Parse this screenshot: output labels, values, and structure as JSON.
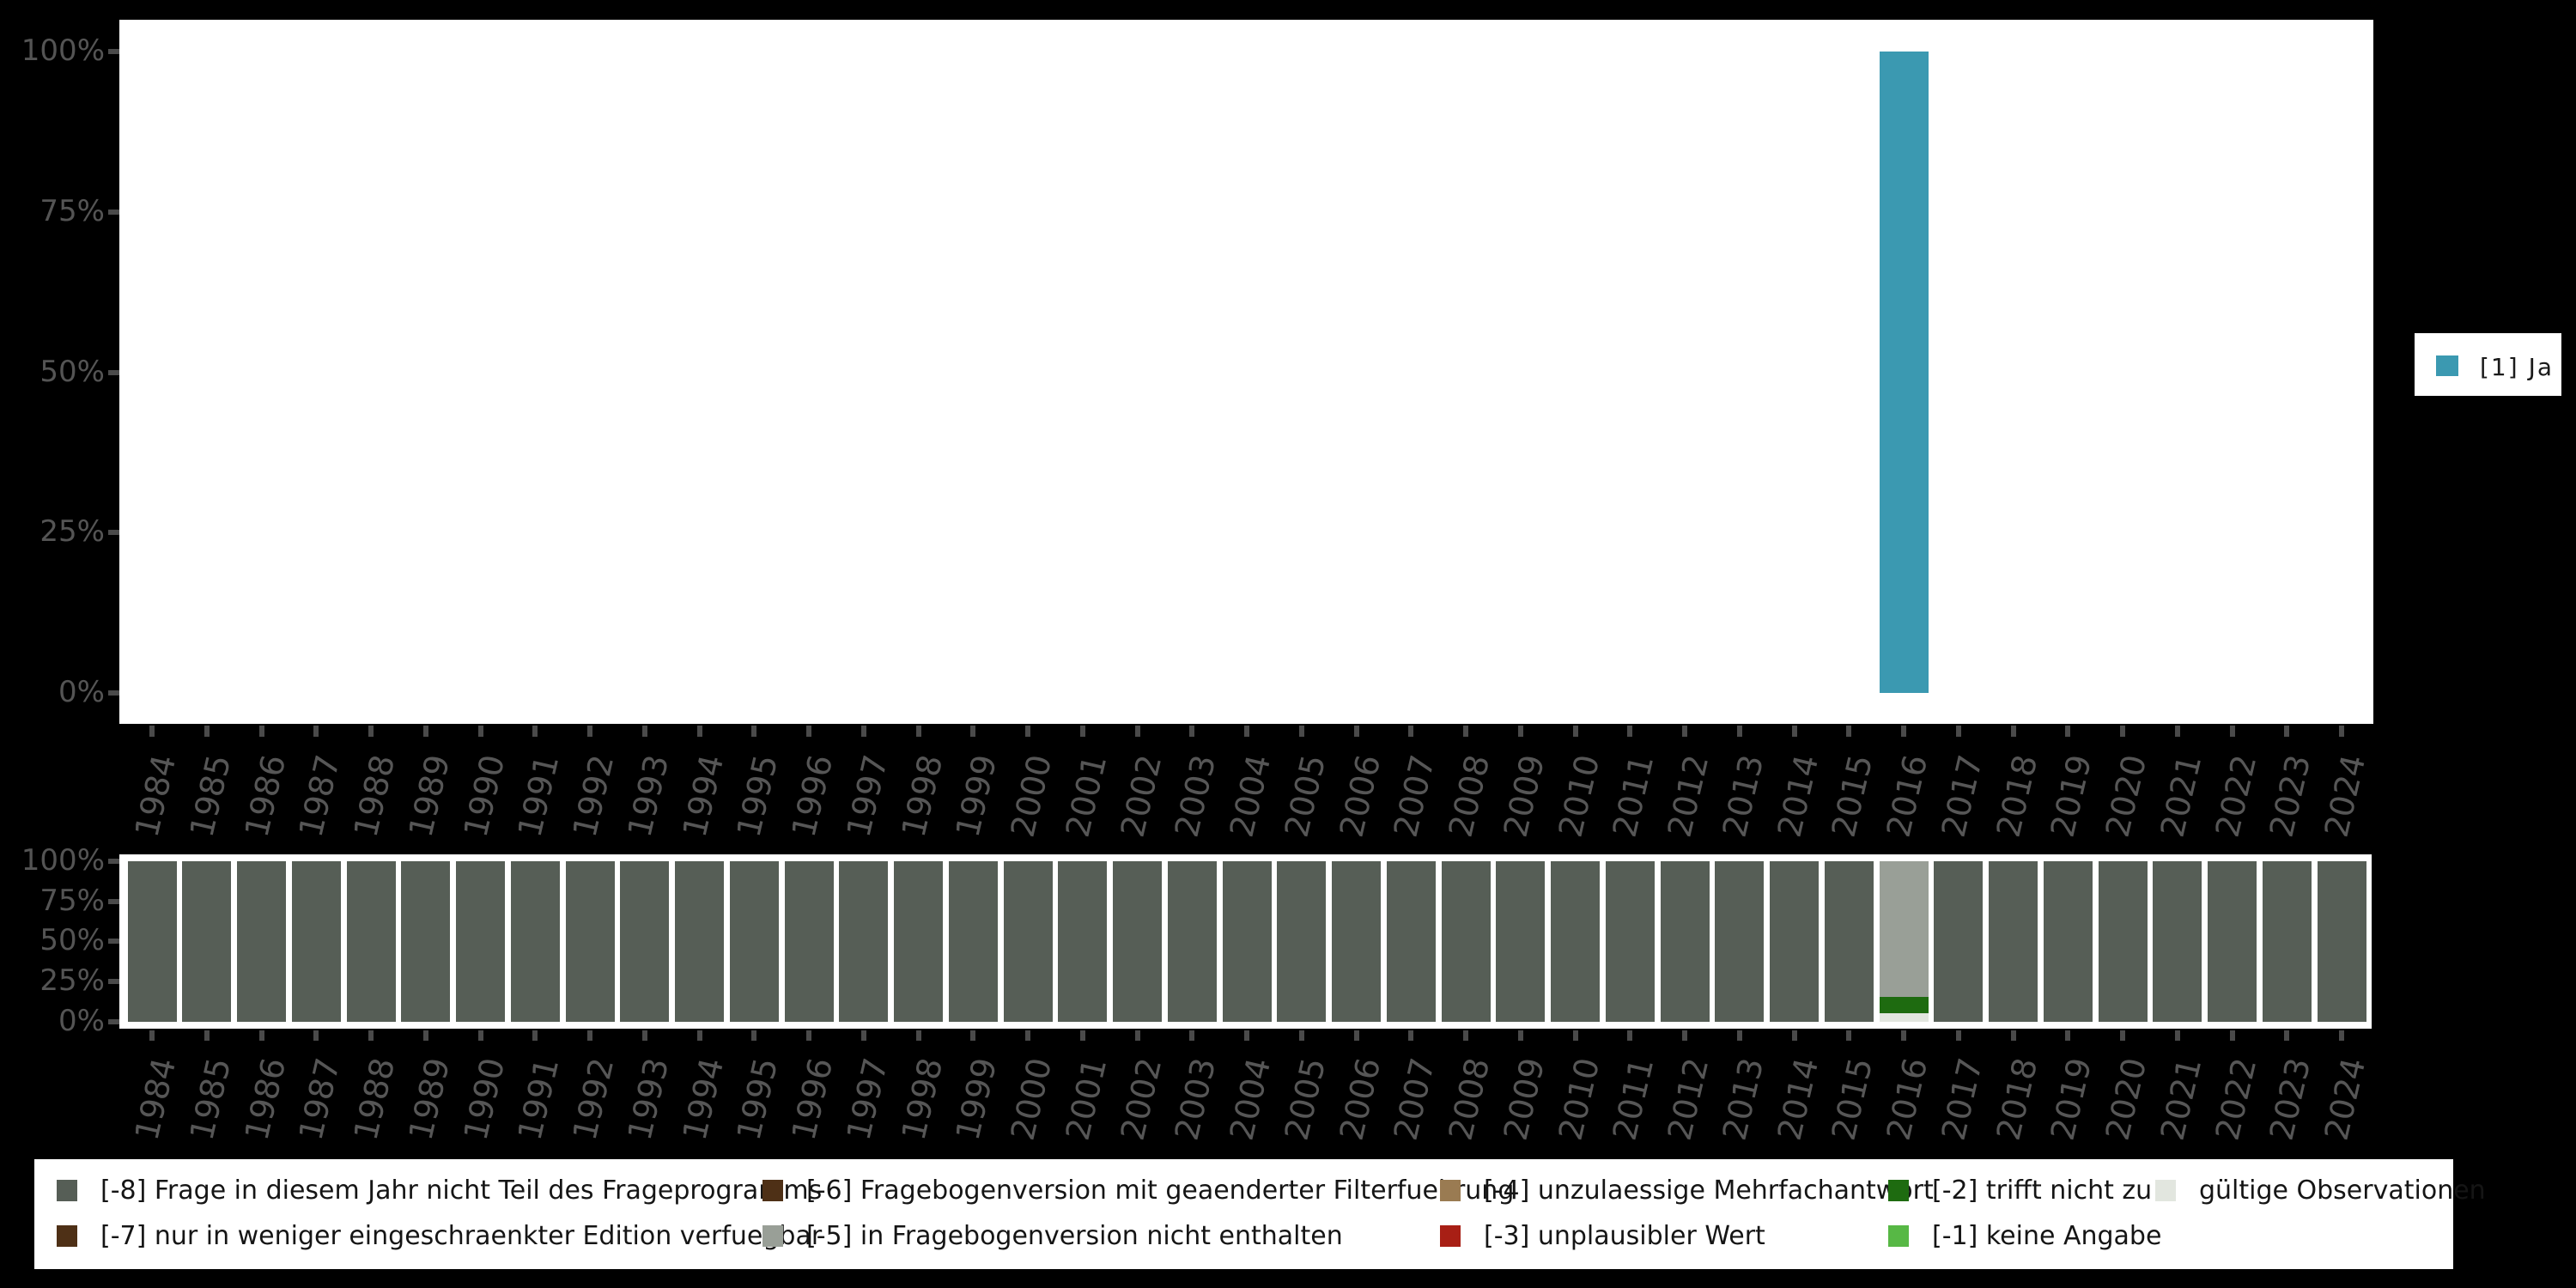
{
  "page": {
    "background": "#000000"
  },
  "years": [
    "1984",
    "1985",
    "1986",
    "1987",
    "1988",
    "1989",
    "1990",
    "1991",
    "1992",
    "1993",
    "1994",
    "1995",
    "1996",
    "1997",
    "1998",
    "1999",
    "2000",
    "2001",
    "2002",
    "2003",
    "2004",
    "2005",
    "2006",
    "2007",
    "2008",
    "2009",
    "2010",
    "2011",
    "2012",
    "2013",
    "2014",
    "2015",
    "2016",
    "2017",
    "2018",
    "2019",
    "2020",
    "2021",
    "2022",
    "2023",
    "2024"
  ],
  "colors": {
    "ja": "#3b99b1",
    "-8": "#565e56",
    "-7": "#4e3016",
    "-6": "#4e3016",
    "-5": "#999f97",
    "-4": "#9a7b52",
    "-3": "#a81f15",
    "-2": "#1e6b10",
    "-1": "#57b845",
    "valid": "#e2e6df"
  },
  "top_chart": {
    "y_tick_labels": [
      "100%",
      "75%",
      "50%",
      "25%",
      "0%"
    ],
    "legend": {
      "label": "[1] Ja",
      "color": "#3b99b1"
    }
  },
  "bottom_chart": {
    "y_tick_labels": [
      "100%",
      "75%",
      "50%",
      "25%",
      "0%"
    ]
  },
  "legend_items": [
    {
      "code": "-8",
      "label": "[-8] Frage in diesem Jahr nicht Teil des Frageprogramms",
      "row": 0,
      "col": 0
    },
    {
      "code": "-7",
      "label": "[-7] nur in weniger eingeschraenkter Edition verfuegbar",
      "row": 1,
      "col": 0
    },
    {
      "code": "-6",
      "label": "[-6] Fragebogenversion mit geaenderter Filterfuehrung",
      "row": 0,
      "col": 1
    },
    {
      "code": "-5",
      "label": "[-5] in Fragebogenversion nicht enthalten",
      "row": 1,
      "col": 1
    },
    {
      "code": "-4",
      "label": "[-4] unzulaessige Mehrfachantwort",
      "row": 0,
      "col": 2
    },
    {
      "code": "-3",
      "label": "[-3] unplausibler Wert",
      "row": 1,
      "col": 2
    },
    {
      "code": "-2",
      "label": "[-2] trifft nicht zu",
      "row": 0,
      "col": 3
    },
    {
      "code": "-1",
      "label": "[-1] keine Angabe",
      "row": 1,
      "col": 3
    },
    {
      "code": "valid",
      "label": "gültige Observationen",
      "row": 0,
      "col": 4
    }
  ],
  "chart_data": [
    {
      "type": "bar",
      "title": "",
      "categories": [
        "1984",
        "1985",
        "1986",
        "1987",
        "1988",
        "1989",
        "1990",
        "1991",
        "1992",
        "1993",
        "1994",
        "1995",
        "1996",
        "1997",
        "1998",
        "1999",
        "2000",
        "2001",
        "2002",
        "2003",
        "2004",
        "2005",
        "2006",
        "2007",
        "2008",
        "2009",
        "2010",
        "2011",
        "2012",
        "2013",
        "2014",
        "2015",
        "2016",
        "2017",
        "2018",
        "2019",
        "2020",
        "2021",
        "2022",
        "2023",
        "2024"
      ],
      "series": [
        {
          "name": "[1] Ja",
          "color": "#3b99b1",
          "values": [
            null,
            null,
            null,
            null,
            null,
            null,
            null,
            null,
            null,
            null,
            null,
            null,
            null,
            null,
            null,
            null,
            null,
            null,
            null,
            null,
            null,
            null,
            null,
            null,
            null,
            null,
            null,
            null,
            null,
            null,
            null,
            null,
            100,
            null,
            null,
            null,
            null,
            null,
            null,
            null,
            null
          ]
        }
      ],
      "ylabel": "",
      "ylim": [
        0,
        100
      ],
      "y_ticks_pct": [
        0,
        25,
        50,
        75,
        100
      ],
      "legend_position": "right",
      "grid": false
    },
    {
      "type": "stacked-bar",
      "title": "",
      "categories": [
        "1984",
        "1985",
        "1986",
        "1987",
        "1988",
        "1989",
        "1990",
        "1991",
        "1992",
        "1993",
        "1994",
        "1995",
        "1996",
        "1997",
        "1998",
        "1999",
        "2000",
        "2001",
        "2002",
        "2003",
        "2004",
        "2005",
        "2006",
        "2007",
        "2008",
        "2009",
        "2010",
        "2011",
        "2012",
        "2013",
        "2014",
        "2015",
        "2016",
        "2017",
        "2018",
        "2019",
        "2020",
        "2021",
        "2022",
        "2023",
        "2024"
      ],
      "ylim": [
        0,
        100
      ],
      "y_ticks_pct": [
        0,
        25,
        50,
        75,
        100
      ],
      "legend_position": "bottom",
      "grid": false,
      "stacks": {
        "default": [
          {
            "code": "-8",
            "pct": 100
          }
        ],
        "2016": [
          {
            "code": "-5",
            "pct": 84.5
          },
          {
            "code": "-2",
            "pct": 10.2
          },
          {
            "code": "valid",
            "pct": 5.3
          }
        ]
      }
    }
  ]
}
